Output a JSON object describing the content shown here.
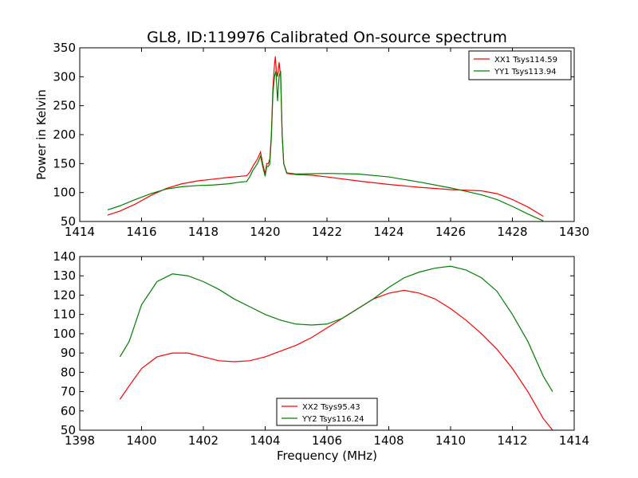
{
  "title": "GL8, ID:119976 Calibrated On-source spectrum",
  "ylabel": "Power in Kelvin",
  "xlabel": "Frequency (MHz)",
  "chart_data": [
    {
      "type": "line",
      "title": "GL8, ID:119976 Calibrated On-source spectrum",
      "ylabel": "Power in Kelvin",
      "xlabel": "",
      "xlim": [
        1414,
        1430
      ],
      "ylim": [
        50,
        350
      ],
      "xticks": [
        1414,
        1416,
        1418,
        1420,
        1422,
        1424,
        1426,
        1428,
        1430
      ],
      "yticks": [
        50,
        100,
        150,
        200,
        250,
        300,
        350
      ],
      "grid": false,
      "legend_position": "top-right",
      "series": [
        {
          "name": "XX1 Tsys114.59",
          "color": "#ff0000",
          "points": [
            [
              1414.9,
              61
            ],
            [
              1415.3,
              68
            ],
            [
              1415.8,
              80
            ],
            [
              1416.3,
              95
            ],
            [
              1416.8,
              107
            ],
            [
              1417.3,
              115
            ],
            [
              1417.8,
              120
            ],
            [
              1418.3,
              123
            ],
            [
              1418.8,
              126
            ],
            [
              1419.2,
              128
            ],
            [
              1419.4,
              129
            ],
            [
              1419.5,
              135
            ],
            [
              1419.6,
              145
            ],
            [
              1419.75,
              158
            ],
            [
              1419.85,
              170
            ],
            [
              1419.92,
              150
            ],
            [
              1420.0,
              132
            ],
            [
              1420.05,
              150
            ],
            [
              1420.1,
              150
            ],
            [
              1420.15,
              158
            ],
            [
              1420.2,
              200
            ],
            [
              1420.25,
              280
            ],
            [
              1420.3,
              320
            ],
            [
              1420.33,
              335
            ],
            [
              1420.36,
              310
            ],
            [
              1420.4,
              300
            ],
            [
              1420.45,
              325
            ],
            [
              1420.5,
              300
            ],
            [
              1420.55,
              200
            ],
            [
              1420.6,
              150
            ],
            [
              1420.7,
              133
            ],
            [
              1421.0,
              131
            ],
            [
              1421.5,
              130
            ],
            [
              1422.0,
              127
            ],
            [
              1423.0,
              120
            ],
            [
              1424.0,
              114
            ],
            [
              1425.0,
              109
            ],
            [
              1426.0,
              105
            ],
            [
              1426.5,
              104
            ],
            [
              1427.0,
              103
            ],
            [
              1427.5,
              98
            ],
            [
              1428.0,
              88
            ],
            [
              1428.5,
              75
            ],
            [
              1429.0,
              59
            ]
          ]
        },
        {
          "name": "YY1 Tsys113.94",
          "color": "#008000",
          "points": [
            [
              1414.9,
              70
            ],
            [
              1415.3,
              77
            ],
            [
              1415.8,
              88
            ],
            [
              1416.3,
              98
            ],
            [
              1416.8,
              106
            ],
            [
              1417.3,
              110
            ],
            [
              1417.8,
              112
            ],
            [
              1418.3,
              113
            ],
            [
              1418.8,
              115
            ],
            [
              1419.2,
              118
            ],
            [
              1419.4,
              119
            ],
            [
              1419.5,
              127
            ],
            [
              1419.6,
              138
            ],
            [
              1419.75,
              150
            ],
            [
              1419.85,
              163
            ],
            [
              1419.92,
              145
            ],
            [
              1420.0,
              128
            ],
            [
              1420.05,
              145
            ],
            [
              1420.1,
              145
            ],
            [
              1420.15,
              150
            ],
            [
              1420.2,
              195
            ],
            [
              1420.25,
              270
            ],
            [
              1420.3,
              300
            ],
            [
              1420.35,
              310
            ],
            [
              1420.4,
              258
            ],
            [
              1420.45,
              300
            ],
            [
              1420.5,
              310
            ],
            [
              1420.55,
              200
            ],
            [
              1420.6,
              150
            ],
            [
              1420.7,
              134
            ],
            [
              1421.0,
              132
            ],
            [
              1422.0,
              133
            ],
            [
              1423.0,
              132
            ],
            [
              1424.0,
              127
            ],
            [
              1425.0,
              118
            ],
            [
              1426.0,
              108
            ],
            [
              1427.0,
              96
            ],
            [
              1427.5,
              88
            ],
            [
              1428.0,
              76
            ],
            [
              1428.5,
              63
            ],
            [
              1429.0,
              51
            ]
          ]
        }
      ]
    },
    {
      "type": "line",
      "title": "",
      "xlabel": "Frequency (MHz)",
      "ylabel": "",
      "xlim": [
        1398,
        1414
      ],
      "ylim": [
        50,
        140
      ],
      "xticks": [
        1398,
        1400,
        1402,
        1404,
        1406,
        1408,
        1410,
        1412,
        1414
      ],
      "yticks": [
        50,
        60,
        70,
        80,
        90,
        100,
        110,
        120,
        130,
        140
      ],
      "grid": false,
      "legend_position": "bottom-center",
      "series": [
        {
          "name": "XX2 Tsys95.43",
          "color": "#ff0000",
          "points": [
            [
              1399.3,
              66
            ],
            [
              1399.6,
              73
            ],
            [
              1400.0,
              82
            ],
            [
              1400.5,
              88
            ],
            [
              1401.0,
              90
            ],
            [
              1401.5,
              90
            ],
            [
              1402.0,
              88
            ],
            [
              1402.5,
              86
            ],
            [
              1403.0,
              85.5
            ],
            [
              1403.5,
              86
            ],
            [
              1404.0,
              88
            ],
            [
              1404.5,
              91
            ],
            [
              1405.0,
              94
            ],
            [
              1405.5,
              98
            ],
            [
              1406.0,
              103
            ],
            [
              1406.5,
              108
            ],
            [
              1407.0,
              113
            ],
            [
              1407.5,
              118
            ],
            [
              1408.0,
              121
            ],
            [
              1408.5,
              122.5
            ],
            [
              1409.0,
              121
            ],
            [
              1409.5,
              118
            ],
            [
              1410.0,
              113
            ],
            [
              1410.5,
              107
            ],
            [
              1411.0,
              100
            ],
            [
              1411.5,
              92
            ],
            [
              1412.0,
              82
            ],
            [
              1412.5,
              70
            ],
            [
              1413.0,
              56
            ],
            [
              1413.3,
              50
            ]
          ]
        },
        {
          "name": "YY2 Tsys116.24",
          "color": "#008000",
          "points": [
            [
              1399.3,
              88
            ],
            [
              1399.6,
              96
            ],
            [
              1400.0,
              115
            ],
            [
              1400.5,
              127
            ],
            [
              1401.0,
              131
            ],
            [
              1401.5,
              130
            ],
            [
              1402.0,
              127
            ],
            [
              1402.5,
              123
            ],
            [
              1403.0,
              118
            ],
            [
              1403.5,
              114
            ],
            [
              1404.0,
              110
            ],
            [
              1404.5,
              107
            ],
            [
              1405.0,
              105
            ],
            [
              1405.5,
              104.5
            ],
            [
              1406.0,
              105
            ],
            [
              1406.5,
              108
            ],
            [
              1407.0,
              113
            ],
            [
              1407.5,
              118
            ],
            [
              1408.0,
              124
            ],
            [
              1408.5,
              129
            ],
            [
              1409.0,
              132
            ],
            [
              1409.5,
              134
            ],
            [
              1410.0,
              135
            ],
            [
              1410.5,
              133
            ],
            [
              1411.0,
              129
            ],
            [
              1411.5,
              122
            ],
            [
              1412.0,
              110
            ],
            [
              1412.5,
              96
            ],
            [
              1413.0,
              78
            ],
            [
              1413.3,
              70
            ]
          ]
        }
      ]
    }
  ]
}
